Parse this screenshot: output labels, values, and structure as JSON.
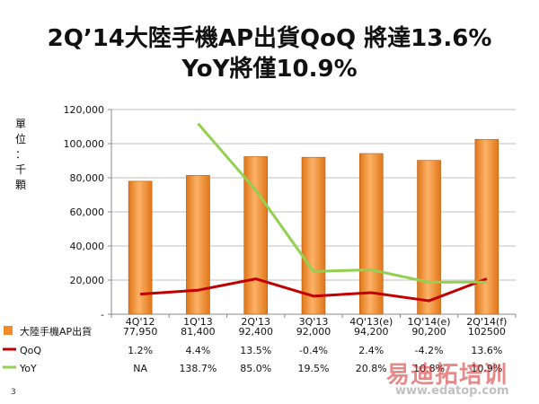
{
  "title_lines": [
    "2Q’14大陸手機AP出貨QoQ 將達13.6%",
    "YoY將僅10.9%"
  ],
  "ylabel_chars": [
    "單",
    "位",
    "：",
    "千",
    "顆"
  ],
  "slide_number": "3",
  "watermark": {
    "text": "易迪拓培训",
    "url": "www.edatop.com"
  },
  "chart_data": {
    "type": "bar",
    "categories": [
      "4Q'12",
      "1Q'13",
      "2Q'13",
      "3Q'13",
      "4Q'13(e)",
      "1Q'14(e)",
      "2Q'14(f)"
    ],
    "ylim": [
      0,
      120000
    ],
    "yticks": [
      0,
      20000,
      40000,
      60000,
      80000,
      100000,
      120000
    ],
    "ytick_labels": [
      "-",
      "20,000",
      "40,000",
      "60,000",
      "80,000",
      "100,000",
      "120,000"
    ],
    "grid": true,
    "series": [
      {
        "name": "大陸手機AP出貨",
        "kind": "bar",
        "color": "#F28C28",
        "values": [
          77950,
          81400,
          92400,
          92000,
          94200,
          90200,
          102500
        ],
        "table_labels": [
          "77,950",
          "81,400",
          "92,400",
          "92,000",
          "94,200",
          "90,200",
          "102500"
        ]
      },
      {
        "name": "QoQ",
        "kind": "line",
        "color": "#C00000",
        "values": [
          1.2,
          4.4,
          13.5,
          -0.4,
          2.4,
          -4.2,
          13.6
        ],
        "table_labels": [
          "1.2%",
          "4.4%",
          "13.5%",
          "-0.4%",
          "2.4%",
          "-4.2%",
          "13.6%"
        ]
      },
      {
        "name": "YoY",
        "kind": "line",
        "color": "#92D050",
        "values": [
          null,
          138.7,
          85.0,
          19.5,
          20.8,
          10.8,
          10.9
        ],
        "table_labels": [
          "NA",
          "138.7%",
          "85.0%",
          "19.5%",
          "20.8%",
          "10.8%",
          "10.9%"
        ]
      }
    ]
  }
}
